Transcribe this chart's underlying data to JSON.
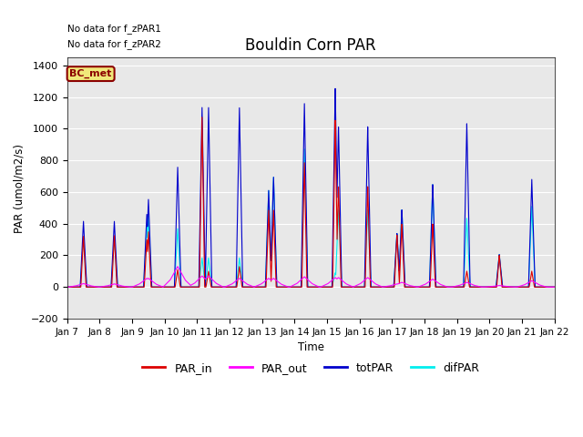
{
  "title": "Bouldin Corn PAR",
  "ylabel": "PAR (umol/m2/s)",
  "xlabel": "Time",
  "no_data_text1": "No data for f_zPAR1",
  "no_data_text2": "No data for f_zPAR2",
  "legend_label": "BC_met",
  "ylim": [
    -200,
    1450
  ],
  "yticks": [
    -200,
    0,
    200,
    400,
    600,
    800,
    1000,
    1200,
    1400
  ],
  "series_PAR_in_color": "#dd0000",
  "series_PAR_out_color": "#ff00ff",
  "series_totPAR_color": "#0000cc",
  "series_difPAR_color": "#00eeee",
  "tick_labels": [
    "Jan 7",
    "Jan 8",
    "Jan 9",
    "Jan 10",
    "Jan 11",
    "Jan 12",
    "Jan 13",
    "Jan 14",
    "Jan 15",
    "Jan 16",
    "Jan 17",
    "Jan 18",
    "Jan 19",
    "Jan 20",
    "Jan 21",
    "Jan 22"
  ],
  "bg_color": "#e8e8e8",
  "fig_bg_color": "#ffffff",
  "day_peaks": [
    {
      "day": 0.5,
      "tot": 415,
      "par_in": 320,
      "dif": 320,
      "par_out": 22
    },
    {
      "day": 1.45,
      "tot": 415,
      "par_in": 325,
      "dif": 310,
      "par_out": 20
    },
    {
      "day": 2.45,
      "tot": 460,
      "par_in": 300,
      "dif": 385,
      "par_out": 55
    },
    {
      "day": 2.5,
      "tot": 555,
      "par_in": 350,
      "dif": 450,
      "par_out": 55
    },
    {
      "day": 3.4,
      "tot": 760,
      "par_in": 110,
      "dif": 370,
      "par_out": 130
    },
    {
      "day": 4.15,
      "tot": 1140,
      "par_in": 1080,
      "dif": 185,
      "par_out": 70
    },
    {
      "day": 4.35,
      "tot": 1140,
      "par_in": 100,
      "dif": 185,
      "par_out": 70
    },
    {
      "day": 5.3,
      "tot": 1140,
      "par_in": 130,
      "dif": 185,
      "par_out": 55
    },
    {
      "day": 6.2,
      "tot": 615,
      "par_in": 490,
      "dif": 615,
      "par_out": 55
    },
    {
      "day": 6.35,
      "tot": 700,
      "par_in": 490,
      "dif": 700,
      "par_out": 55
    },
    {
      "day": 7.3,
      "tot": 1170,
      "par_in": 795,
      "dif": 880,
      "par_out": 65
    },
    {
      "day": 8.25,
      "tot": 1265,
      "par_in": 1065,
      "dif": 90,
      "par_out": 60
    },
    {
      "day": 8.35,
      "tot": 1020,
      "par_in": 640,
      "dif": 490,
      "par_out": 60
    },
    {
      "day": 9.25,
      "tot": 1020,
      "par_in": 640,
      "dif": 490,
      "par_out": 60
    },
    {
      "day": 10.15,
      "tot": 340,
      "par_in": 330,
      "dif": 340,
      "par_out": 20
    },
    {
      "day": 10.3,
      "tot": 490,
      "par_in": 400,
      "dif": 490,
      "par_out": 30
    },
    {
      "day": 11.25,
      "tot": 650,
      "par_in": 400,
      "dif": 650,
      "par_out": 50
    },
    {
      "day": 12.3,
      "tot": 1035,
      "par_in": 100,
      "dif": 435,
      "par_out": 30
    },
    {
      "day": 13.3,
      "tot": 205,
      "par_in": 200,
      "dif": 205,
      "par_out": 10
    },
    {
      "day": 14.3,
      "tot": 680,
      "par_in": 100,
      "dif": 510,
      "par_out": 40
    }
  ]
}
